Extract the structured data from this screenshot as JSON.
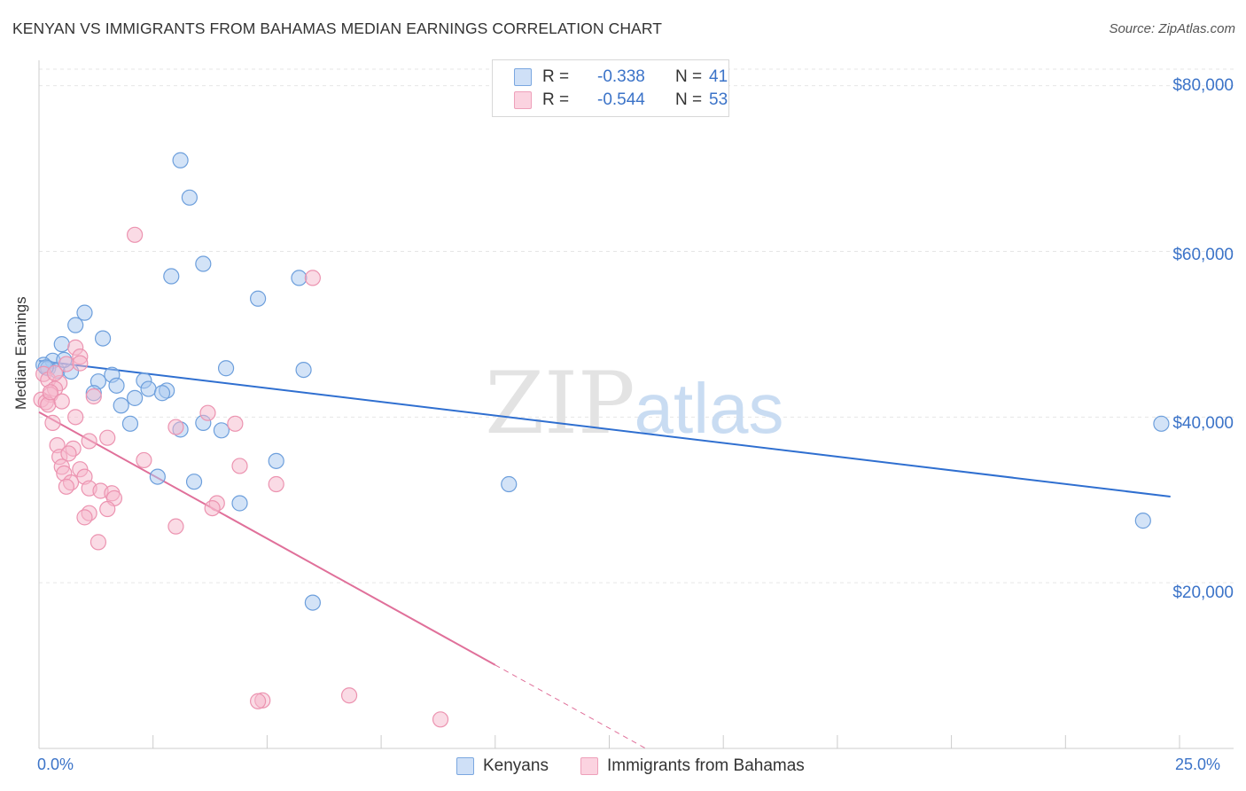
{
  "header": {
    "title": "KENYAN VS IMMIGRANTS FROM BAHAMAS MEDIAN EARNINGS CORRELATION CHART",
    "source": "Source: ZipAtlas.com"
  },
  "watermark": {
    "zip": "ZIP",
    "atlas": "atlas"
  },
  "legend": {
    "rows": [
      {
        "r_label": "R =",
        "r_value": "-0.338",
        "n_label": "N =",
        "n_value": "41",
        "color": "#a8c8f0"
      },
      {
        "r_label": "R =",
        "r_value": "-0.544",
        "n_label": "N =",
        "n_value": "53",
        "color": "#f5b8cc"
      }
    ]
  },
  "colors": {
    "blue_fill": "#a8c8f0",
    "blue_stroke": "#6d9fdc",
    "blue_line": "#2f6fd0",
    "pink_fill": "#f5b8cc",
    "pink_stroke": "#ec93b0",
    "pink_line": "#e0709a",
    "tick_text": "#3b73c8",
    "grid": "#e6e6e6"
  },
  "chart_data": {
    "type": "scatter",
    "title": "KENYAN VS IMMIGRANTS FROM BAHAMAS MEDIAN EARNINGS CORRELATION CHART",
    "xlabel": "",
    "ylabel": "Median Earnings",
    "xlim": [
      0,
      25
    ],
    "ylim": [
      0,
      82000
    ],
    "x_tick_labels": [
      "0.0%",
      "25.0%"
    ],
    "y_ticks": [
      20000,
      40000,
      60000,
      80000
    ],
    "y_tick_labels": [
      "$20,000",
      "$40,000",
      "$60,000",
      "$80,000"
    ],
    "legend_position": "top-center",
    "series": [
      {
        "name": "Kenyans",
        "r": -0.338,
        "n": 41,
        "trend": {
          "x": [
            0,
            24.8
          ],
          "y": [
            46800,
            30400
          ],
          "dash_from": null
        },
        "points": [
          [
            3.1,
            71000
          ],
          [
            3.3,
            66500
          ],
          [
            3.6,
            58500
          ],
          [
            2.9,
            57000
          ],
          [
            5.7,
            56800
          ],
          [
            4.8,
            54300
          ],
          [
            1.0,
            52600
          ],
          [
            0.8,
            51100
          ],
          [
            1.4,
            49500
          ],
          [
            0.5,
            48800
          ],
          [
            0.3,
            46800
          ],
          [
            0.1,
            46300
          ],
          [
            0.2,
            45900
          ],
          [
            0.4,
            45600
          ],
          [
            0.7,
            45500
          ],
          [
            4.1,
            45900
          ],
          [
            5.8,
            45700
          ],
          [
            1.6,
            45100
          ],
          [
            2.3,
            44400
          ],
          [
            1.3,
            44300
          ],
          [
            1.7,
            43800
          ],
          [
            2.4,
            43400
          ],
          [
            2.8,
            43200
          ],
          [
            2.7,
            42900
          ],
          [
            1.2,
            42900
          ],
          [
            2.1,
            42300
          ],
          [
            1.8,
            41400
          ],
          [
            2.0,
            39200
          ],
          [
            3.6,
            39300
          ],
          [
            4.0,
            38400
          ],
          [
            3.1,
            38500
          ],
          [
            5.2,
            34700
          ],
          [
            2.6,
            32800
          ],
          [
            3.4,
            32200
          ],
          [
            10.3,
            31900
          ],
          [
            4.4,
            29600
          ],
          [
            24.6,
            39200
          ],
          [
            24.2,
            27500
          ],
          [
            6.0,
            17600
          ],
          [
            0.15,
            46000
          ],
          [
            0.55,
            46900
          ]
        ]
      },
      {
        "name": "Immigrants from Bahamas",
        "r": -0.544,
        "n": 53,
        "trend": {
          "x": [
            0,
            13.3
          ],
          "y": [
            40600,
            0
          ],
          "dash_from": 10.0
        },
        "points": [
          [
            2.1,
            62000
          ],
          [
            6.0,
            56800
          ],
          [
            0.8,
            48400
          ],
          [
            0.9,
            47300
          ],
          [
            0.6,
            46400
          ],
          [
            0.1,
            45200
          ],
          [
            0.2,
            44500
          ],
          [
            0.45,
            44100
          ],
          [
            0.35,
            43400
          ],
          [
            0.25,
            42700
          ],
          [
            1.2,
            42500
          ],
          [
            0.05,
            42100
          ],
          [
            0.15,
            41800
          ],
          [
            0.2,
            41500
          ],
          [
            3.7,
            40500
          ],
          [
            0.8,
            40000
          ],
          [
            0.3,
            39300
          ],
          [
            4.3,
            39200
          ],
          [
            3.0,
            38800
          ],
          [
            1.5,
            37500
          ],
          [
            1.1,
            37100
          ],
          [
            0.4,
            36600
          ],
          [
            0.75,
            36200
          ],
          [
            0.45,
            35200
          ],
          [
            0.65,
            35600
          ],
          [
            2.3,
            34800
          ],
          [
            4.4,
            34100
          ],
          [
            0.5,
            34000
          ],
          [
            0.9,
            33700
          ],
          [
            0.55,
            33200
          ],
          [
            1.0,
            32800
          ],
          [
            0.7,
            32100
          ],
          [
            5.2,
            31900
          ],
          [
            0.6,
            31600
          ],
          [
            1.1,
            31400
          ],
          [
            1.35,
            31100
          ],
          [
            1.6,
            30800
          ],
          [
            1.65,
            30200
          ],
          [
            3.9,
            29600
          ],
          [
            3.8,
            29000
          ],
          [
            1.5,
            28900
          ],
          [
            1.1,
            28400
          ],
          [
            1.0,
            27900
          ],
          [
            3.0,
            26800
          ],
          [
            1.3,
            24900
          ],
          [
            4.9,
            5800
          ],
          [
            6.8,
            6400
          ],
          [
            8.8,
            3500
          ],
          [
            4.8,
            5700
          ],
          [
            0.35,
            45300
          ],
          [
            0.9,
            46500
          ],
          [
            0.25,
            43000
          ],
          [
            0.5,
            41900
          ]
        ]
      }
    ]
  }
}
